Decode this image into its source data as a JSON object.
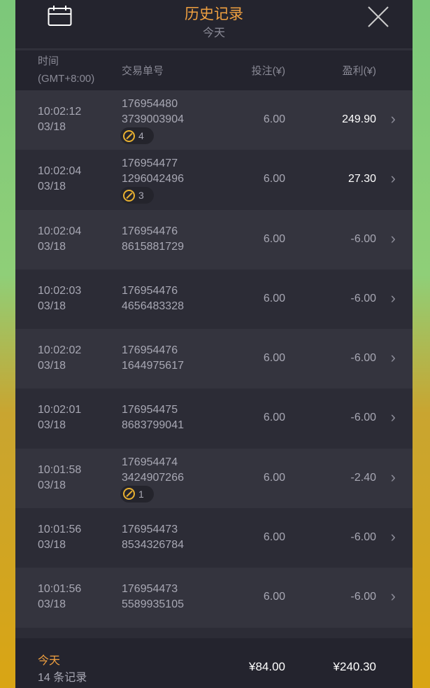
{
  "header": {
    "title": "历史记录",
    "subtitle": "今天",
    "calendar_icon": "calendar-icon",
    "close_icon": "close-icon"
  },
  "columns": {
    "time": "时间",
    "timezone": "(GMT+8:00)",
    "order": "交易单号",
    "bet": "投注(¥)",
    "profit": "盈利(¥)"
  },
  "rows": [
    {
      "time": "10:02:12",
      "date": "03/18",
      "id1": "176954480",
      "id2": "3739003904",
      "badge": "4",
      "bet": "6.00",
      "profit": "249.90",
      "win": true
    },
    {
      "time": "10:02:04",
      "date": "03/18",
      "id1": "176954477",
      "id2": "1296042496",
      "badge": "3",
      "bet": "6.00",
      "profit": "27.30",
      "win": true
    },
    {
      "time": "10:02:04",
      "date": "03/18",
      "id1": "176954476",
      "id2": "8615881729",
      "bet": "6.00",
      "profit": "-6.00"
    },
    {
      "time": "10:02:03",
      "date": "03/18",
      "id1": "176954476",
      "id2": "4656483328",
      "bet": "6.00",
      "profit": "-6.00"
    },
    {
      "time": "10:02:02",
      "date": "03/18",
      "id1": "176954476",
      "id2": "1644975617",
      "bet": "6.00",
      "profit": "-6.00"
    },
    {
      "time": "10:02:01",
      "date": "03/18",
      "id1": "176954475",
      "id2": "8683799041",
      "bet": "6.00",
      "profit": "-6.00"
    },
    {
      "time": "10:01:58",
      "date": "03/18",
      "id1": "176954474",
      "id2": "3424907266",
      "badge": "1",
      "bet": "6.00",
      "profit": "-2.40"
    },
    {
      "time": "10:01:56",
      "date": "03/18",
      "id1": "176954473",
      "id2": "8534326784",
      "bet": "6.00",
      "profit": "-6.00"
    },
    {
      "time": "10:01:56",
      "date": "03/18",
      "id1": "176954473",
      "id2": "5589935105",
      "bet": "6.00",
      "profit": "-6.00"
    }
  ],
  "footer": {
    "period": "今天",
    "count": "14 条记录",
    "total_bet": "¥84.00",
    "total_profit": "¥240.30"
  },
  "colors": {
    "accent": "#f0a040",
    "panel": "#2c2c36"
  }
}
